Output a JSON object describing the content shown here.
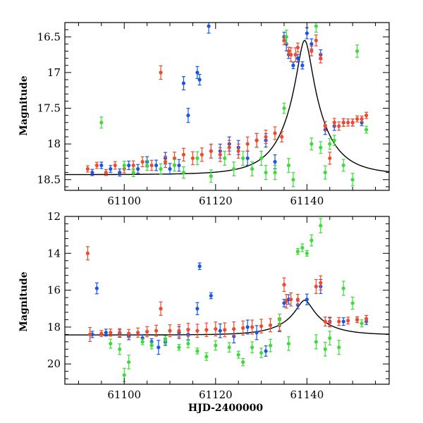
{
  "figure": {
    "xlabel": "HJD-2400000",
    "colors": {
      "blue": "#1a55e8",
      "red": "#f04a2a",
      "green": "#3ddc3a",
      "model": "#000000"
    }
  },
  "chart_data": [
    {
      "type": "scatter",
      "panel": "top",
      "ylabel": "Magnitude",
      "xlim": [
        61087,
        61158
      ],
      "ylim": [
        18.65,
        16.3
      ],
      "xticks": [
        61100,
        61120,
        61140
      ],
      "yticks": [
        16.5,
        17,
        17.5,
        18,
        18.5
      ],
      "ytick_labels": [
        "16.5",
        "17",
        "17.5",
        "18",
        "18.5"
      ],
      "model_curve": {
        "name": "model",
        "peak_x": 61139.5,
        "peak_mag": 16.55,
        "baseline_mag": 18.43,
        "tE": 8.0
      },
      "series": [
        {
          "name": "blue",
          "color": "#1a55e8",
          "points": [
            [
              61093,
              18.4
            ],
            [
              61095,
              18.3
            ],
            [
              61097,
              18.35
            ],
            [
              61099,
              18.4
            ],
            [
              61101,
              18.3
            ],
            [
              61103,
              18.35
            ],
            [
              61105,
              18.25
            ],
            [
              61107,
              18.3
            ],
            [
              61109,
              18.2
            ],
            [
              61110,
              18.35
            ],
            [
              61112,
              18.3
            ],
            [
              61113,
              17.15
            ],
            [
              61114,
              17.6
            ],
            [
              61116,
              17.0
            ],
            [
              61116.5,
              17.1
            ],
            [
              61118.5,
              16.35
            ],
            [
              61119,
              18.1
            ],
            [
              61121,
              18.1
            ],
            [
              61123,
              18.0
            ],
            [
              61125,
              18.05
            ],
            [
              61127,
              18.2
            ],
            [
              61129,
              17.95
            ],
            [
              61131,
              17.95
            ],
            [
              61133,
              18.25
            ],
            [
              61135,
              16.5
            ],
            [
              61135.5,
              16.6
            ],
            [
              61136,
              16.75
            ],
            [
              61137,
              16.9
            ],
            [
              61138,
              16.8
            ],
            [
              61139,
              16.9
            ],
            [
              61140,
              16.45
            ],
            [
              61141,
              16.6
            ],
            [
              61143,
              16.75
            ],
            [
              61144,
              17.8
            ],
            [
              61146,
              17.75
            ],
            [
              61148,
              17.7
            ],
            [
              61150,
              17.7
            ],
            [
              61152,
              17.7
            ]
          ]
        },
        {
          "name": "red",
          "color": "#f04a2a",
          "points": [
            [
              61092,
              18.35
            ],
            [
              61094,
              18.3
            ],
            [
              61096,
              18.4
            ],
            [
              61098,
              18.3
            ],
            [
              61100,
              18.35
            ],
            [
              61102,
              18.3
            ],
            [
              61104,
              18.25
            ],
            [
              61106,
              18.3
            ],
            [
              61108,
              17.0
            ],
            [
              61109,
              18.25
            ],
            [
              61111,
              18.2
            ],
            [
              61113,
              18.15
            ],
            [
              61115,
              18.2
            ],
            [
              61117,
              18.15
            ],
            [
              61119,
              18.1
            ],
            [
              61121,
              18.15
            ],
            [
              61123,
              18.05
            ],
            [
              61125,
              18.1
            ],
            [
              61127,
              18.0
            ],
            [
              61129,
              17.95
            ],
            [
              61131,
              17.9
            ],
            [
              61133,
              17.85
            ],
            [
              61134.5,
              17.9
            ],
            [
              61135,
              16.55
            ],
            [
              61136,
              16.7
            ],
            [
              61136.5,
              16.75
            ],
            [
              61137.5,
              16.75
            ],
            [
              61138,
              16.65
            ],
            [
              61141,
              16.7
            ],
            [
              61142,
              16.55
            ],
            [
              61143,
              16.8
            ],
            [
              61144,
              17.75
            ],
            [
              61145,
              18.2
            ],
            [
              61146,
              17.7
            ],
            [
              61147,
              17.75
            ],
            [
              61148,
              17.7
            ],
            [
              61149,
              17.7
            ],
            [
              61150,
              17.7
            ],
            [
              61151,
              17.65
            ],
            [
              61152,
              17.65
            ],
            [
              61153,
              17.6
            ]
          ]
        },
        {
          "name": "green",
          "color": "#3ddc3a",
          "points": [
            [
              61095,
              17.7
            ],
            [
              61100,
              18.3
            ],
            [
              61102,
              18.4
            ],
            [
              61105,
              18.3
            ],
            [
              61108,
              18.35
            ],
            [
              61111,
              18.3
            ],
            [
              61113,
              18.4
            ],
            [
              61116,
              18.2
            ],
            [
              61119,
              18.45
            ],
            [
              61122,
              18.2
            ],
            [
              61124,
              18.35
            ],
            [
              61126,
              18.2
            ],
            [
              61128,
              18.35
            ],
            [
              61130,
              18.2
            ],
            [
              61131,
              18.4
            ],
            [
              61133,
              18.4
            ],
            [
              61135,
              17.5
            ],
            [
              61135.5,
              16.5
            ],
            [
              61136,
              18.3
            ],
            [
              61137,
              18.5
            ],
            [
              61141,
              18.0
            ],
            [
              61142,
              16.35
            ],
            [
              61143,
              18.05
            ],
            [
              61144,
              18.4
            ],
            [
              61145,
              18.0
            ],
            [
              61146,
              17.95
            ],
            [
              61148,
              18.3
            ],
            [
              61150,
              18.5
            ],
            [
              61151,
              16.7
            ],
            [
              61153,
              17.8
            ]
          ]
        }
      ]
    },
    {
      "type": "scatter",
      "panel": "bottom",
      "ylabel": "Magnitude",
      "xlabel": "HJD-2400000",
      "xlim": [
        61087,
        61158
      ],
      "ylim": [
        21.1,
        12.0
      ],
      "xticks": [
        61100,
        61120,
        61140
      ],
      "xtick_labels": [
        "61100",
        "61120",
        "61140"
      ],
      "yticks": [
        12,
        14,
        16,
        18,
        20
      ],
      "ytick_labels": [
        "12",
        "14",
        "16",
        "18",
        "20"
      ],
      "model_curve": {
        "name": "model",
        "peak_x": 61139.5,
        "peak_mag": 16.55,
        "baseline_mag": 18.43,
        "tE": 8.0
      },
      "series": [
        {
          "name": "blue",
          "color": "#1a55e8",
          "points": [
            [
              61093,
              18.4
            ],
            [
              61094,
              15.9
            ],
            [
              61096,
              18.3
            ],
            [
              61099,
              18.35
            ],
            [
              61101,
              18.5
            ],
            [
              61104,
              18.6
            ],
            [
              61106,
              18.8
            ],
            [
              61107.5,
              19.1
            ],
            [
              61109,
              18.8
            ],
            [
              61112,
              18.3
            ],
            [
              61114,
              18.4
            ],
            [
              61116,
              17.0
            ],
            [
              61116.5,
              14.7
            ],
            [
              61119,
              16.3
            ],
            [
              61121,
              18.2
            ],
            [
              61124,
              18.5
            ],
            [
              61127,
              18.0
            ],
            [
              61129,
              18.3
            ],
            [
              61131,
              19.3
            ],
            [
              61134,
              17.9
            ],
            [
              61135,
              16.7
            ],
            [
              61136,
              16.5
            ],
            [
              61138,
              16.8
            ],
            [
              61140,
              16.5
            ],
            [
              61143,
              15.8
            ],
            [
              61145,
              17.7
            ],
            [
              61148,
              17.7
            ],
            [
              61151,
              17.6
            ],
            [
              61153,
              17.7
            ]
          ]
        },
        {
          "name": "red",
          "color": "#f04a2a",
          "points": [
            [
              61092,
              14.0
            ],
            [
              61092.5,
              18.4
            ],
            [
              61095,
              18.35
            ],
            [
              61097,
              18.3
            ],
            [
              61099,
              18.3
            ],
            [
              61101,
              18.35
            ],
            [
              61103,
              18.3
            ],
            [
              61105,
              18.25
            ],
            [
              61107,
              18.2
            ],
            [
              61108,
              17.0
            ],
            [
              61110,
              18.2
            ],
            [
              61112,
              18.2
            ],
            [
              61114,
              18.15
            ],
            [
              61116,
              18.2
            ],
            [
              61118,
              18.15
            ],
            [
              61120,
              18.1
            ],
            [
              61122,
              18.15
            ],
            [
              61124,
              18.1
            ],
            [
              61126,
              18.05
            ],
            [
              61128,
              18.0
            ],
            [
              61130,
              17.95
            ],
            [
              61132,
              17.9
            ],
            [
              61134,
              17.85
            ],
            [
              61135,
              15.7
            ],
            [
              61135.5,
              16.6
            ],
            [
              61136.5,
              16.5
            ],
            [
              61138,
              16.5
            ],
            [
              61142,
              15.8
            ],
            [
              61143,
              15.6
            ],
            [
              61144,
              17.7
            ],
            [
              61145,
              17.75
            ],
            [
              61147,
              17.7
            ],
            [
              61149,
              17.65
            ],
            [
              61151,
              17.6
            ],
            [
              61153,
              17.55
            ]
          ]
        },
        {
          "name": "green",
          "color": "#3ddc3a",
          "points": [
            [
              61097,
              18.9
            ],
            [
              61099,
              19.2
            ],
            [
              61100,
              20.6
            ],
            [
              61101,
              19.9
            ],
            [
              61104,
              18.8
            ],
            [
              61106,
              19.0
            ],
            [
              61109,
              18.7
            ],
            [
              61112,
              19.1
            ],
            [
              61114,
              18.9
            ],
            [
              61116,
              19.3
            ],
            [
              61118,
              19.6
            ],
            [
              61120,
              19.0
            ],
            [
              61123,
              19.1
            ],
            [
              61125,
              19.5
            ],
            [
              61126,
              19.9
            ],
            [
              61128,
              19.1
            ],
            [
              61130,
              19.4
            ],
            [
              61132,
              19.0
            ],
            [
              61134,
              17.6
            ],
            [
              61136,
              18.9
            ],
            [
              61138,
              13.9
            ],
            [
              61139,
              13.7
            ],
            [
              61140,
              14.0
            ],
            [
              61141,
              13.3
            ],
            [
              61142,
              18.8
            ],
            [
              61143,
              12.5
            ],
            [
              61144,
              19.2
            ],
            [
              61145,
              18.6
            ],
            [
              61147,
              19.1
            ],
            [
              61148,
              15.9
            ],
            [
              61150,
              16.7
            ],
            [
              61152,
              17.8
            ]
          ]
        }
      ]
    }
  ]
}
